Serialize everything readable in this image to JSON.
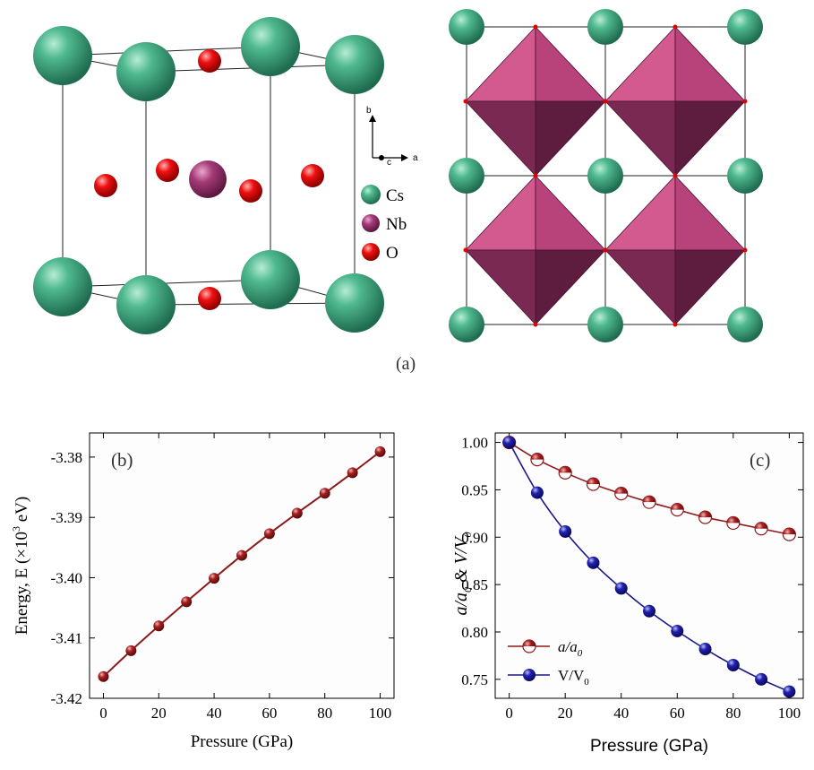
{
  "panel_a": {
    "label": "(a)",
    "legend": [
      {
        "name": "Cs",
        "color": "#3aa17a"
      },
      {
        "name": "Nb",
        "color": "#a53a78"
      },
      {
        "name": "O",
        "color": "#e00000"
      }
    ],
    "axes_triad": {
      "b": "b",
      "c": "c",
      "a": "a"
    },
    "octahedron_color": "#c8487e"
  },
  "chart_data": [
    {
      "type": "line",
      "panel": "(b)",
      "xlabel": "Pressure (GPa)",
      "ylabel_main": "Energy, E (×10",
      "ylabel_sup": "3",
      "ylabel_tail": " eV)",
      "xlim": [
        -5,
        105
      ],
      "ylim": [
        -3.42,
        -3.376
      ],
      "xticks": [
        0,
        20,
        40,
        60,
        80,
        100
      ],
      "xtick_labels": [
        "0",
        "20",
        "40",
        "60",
        "80",
        "100"
      ],
      "yticks": [
        -3.42,
        -3.41,
        -3.4,
        -3.39,
        -3.38
      ],
      "ytick_labels": [
        "-3.42",
        "-3.41",
        "-3.40",
        "-3.39",
        "-3.38"
      ],
      "series": [
        {
          "name": "E",
          "color": "#8b1a1a",
          "x": [
            0,
            10,
            20,
            30,
            40,
            50,
            60,
            70,
            80,
            90,
            100
          ],
          "y": [
            -3.4164,
            -3.4121,
            -3.408,
            -3.404,
            -3.4001,
            -3.3963,
            -3.3927,
            -3.3893,
            -3.386,
            -3.3826,
            -3.3791
          ]
        }
      ]
    },
    {
      "type": "line",
      "panel": "(c)",
      "xlabel": "Pressure (GPa)",
      "xlim": [
        -5,
        105
      ],
      "ylim": [
        0.73,
        1.01
      ],
      "xticks": [
        0,
        20,
        40,
        60,
        80,
        100
      ],
      "xtick_labels": [
        "0",
        "20",
        "40",
        "60",
        "80",
        "100"
      ],
      "yticks": [
        0.75,
        0.8,
        0.85,
        0.9,
        0.95,
        1.0
      ],
      "ytick_labels": [
        "0.75",
        "0.80",
        "0.85",
        "0.90",
        "0.95",
        "1.00"
      ],
      "legend_position": "bottom-left",
      "series": [
        {
          "name": "a/a0",
          "color": "#8b1a1a",
          "marker": "half-filled",
          "x": [
            0,
            10,
            20,
            30,
            40,
            50,
            60,
            70,
            80,
            90,
            100
          ],
          "y": [
            1.0,
            0.982,
            0.968,
            0.956,
            0.946,
            0.937,
            0.929,
            0.921,
            0.915,
            0.909,
            0.903
          ]
        },
        {
          "name": "V/V0",
          "color": "#1a1a8b",
          "marker": "filled",
          "x": [
            0,
            10,
            20,
            30,
            40,
            50,
            60,
            70,
            80,
            90,
            100
          ],
          "y": [
            1.0,
            0.947,
            0.906,
            0.873,
            0.846,
            0.822,
            0.801,
            0.782,
            0.765,
            0.75,
            0.737
          ]
        }
      ]
    }
  ]
}
